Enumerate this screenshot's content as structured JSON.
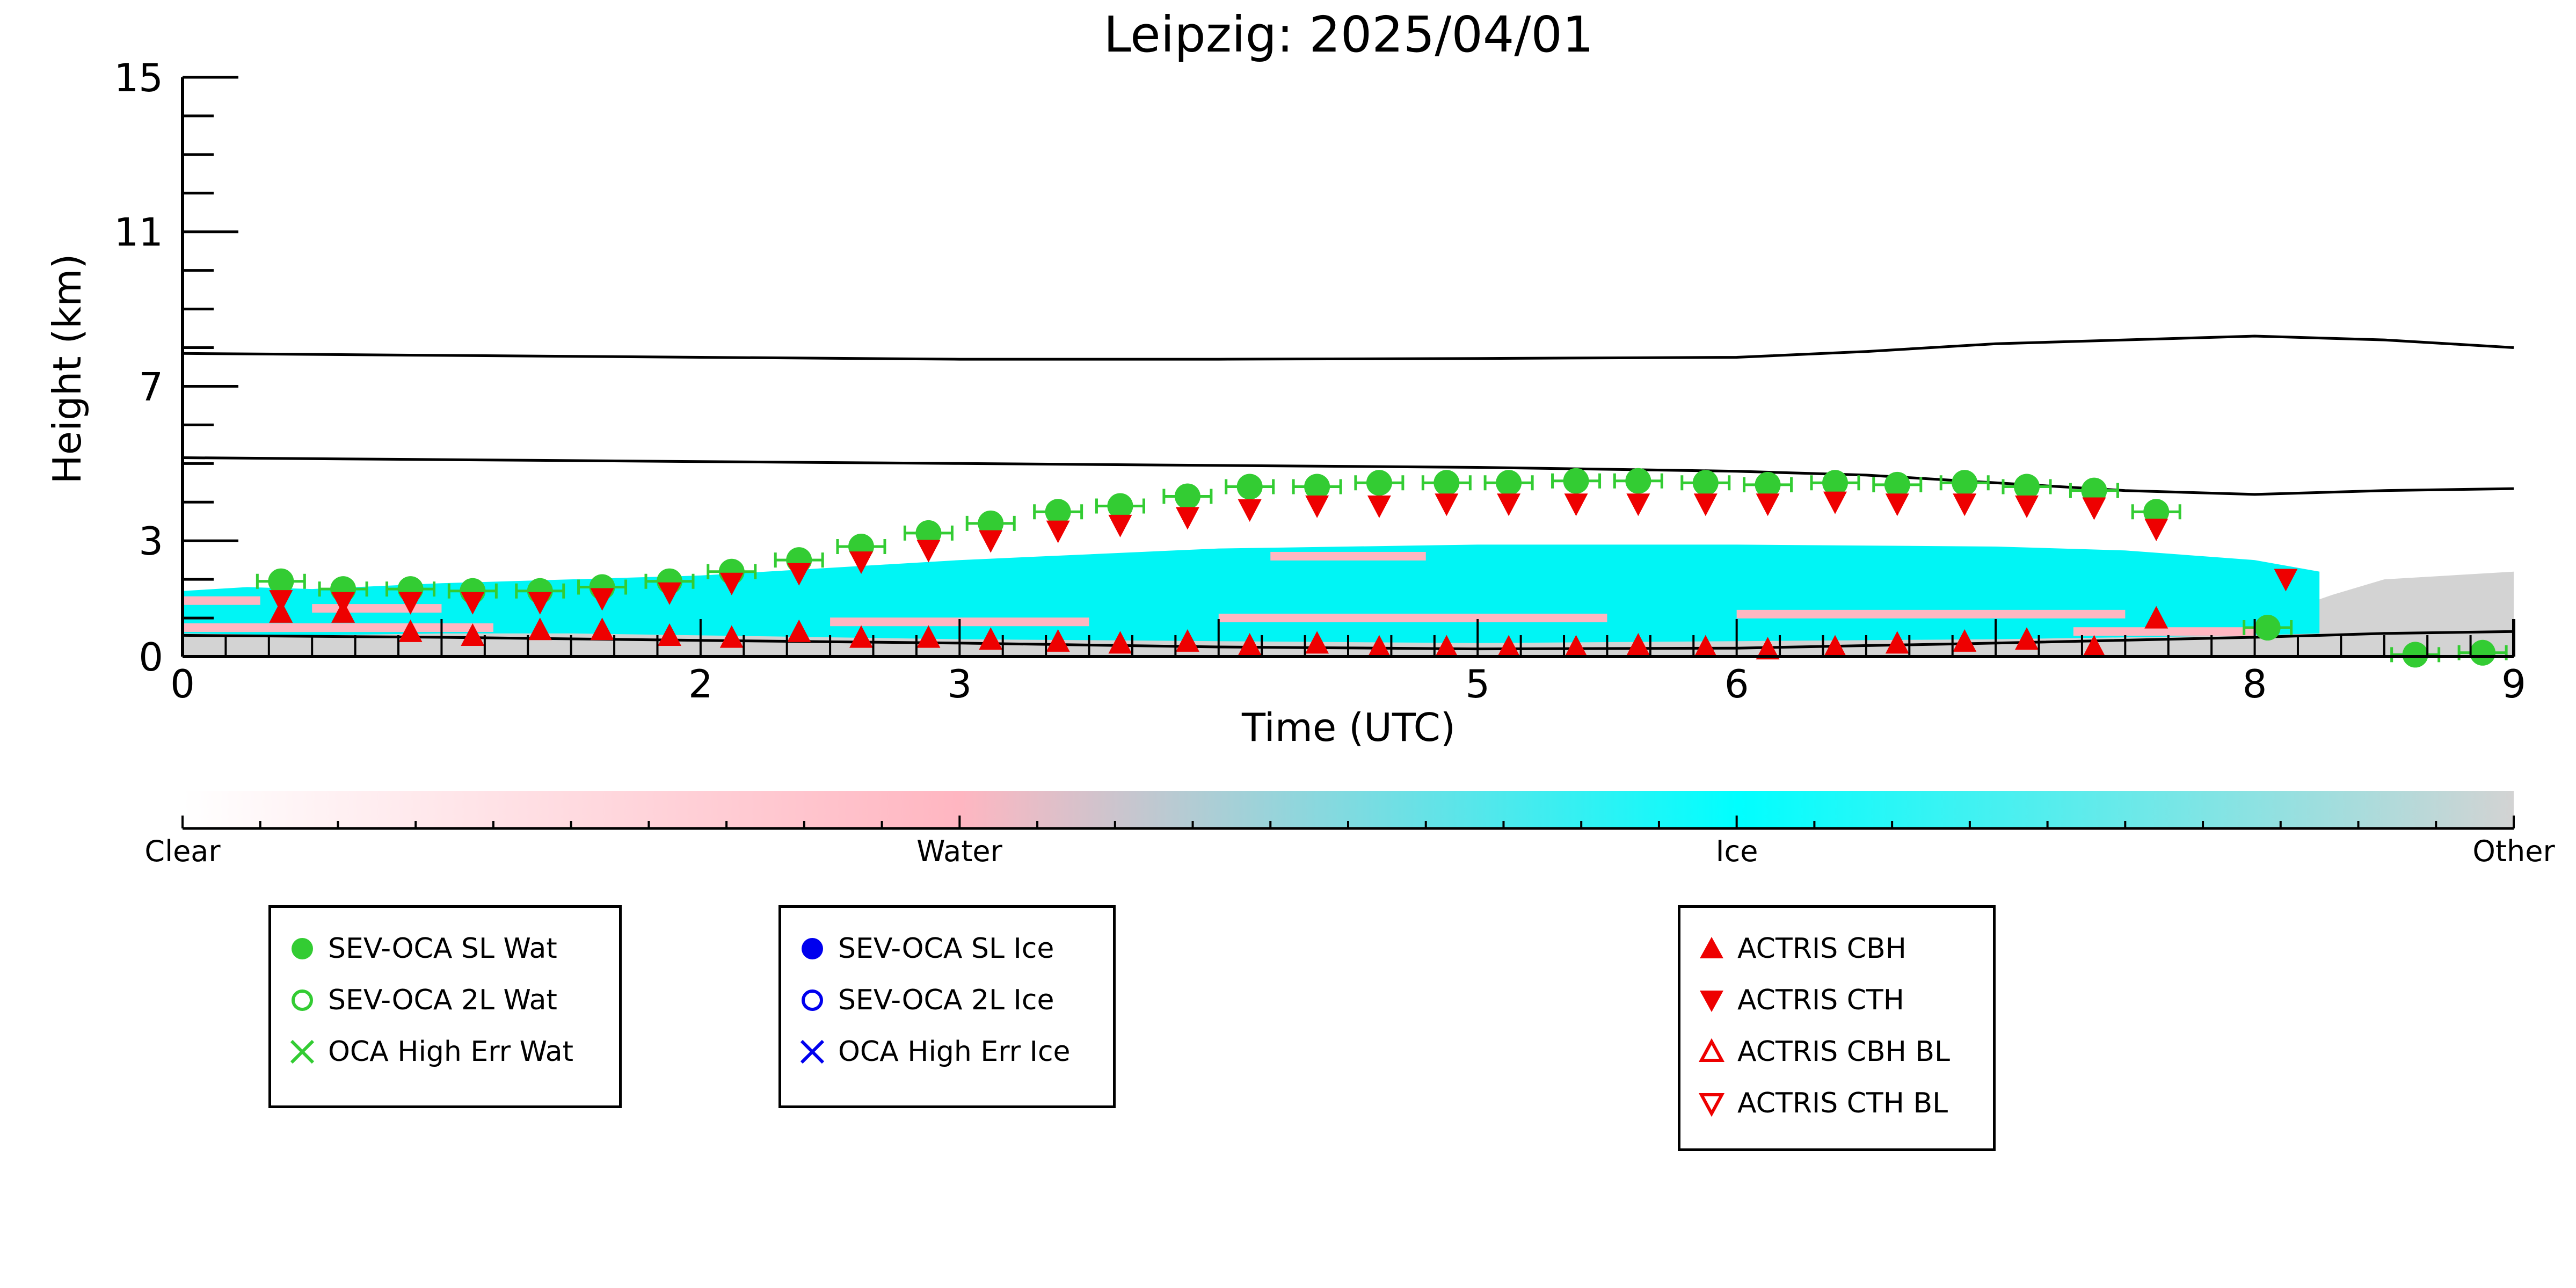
{
  "chart_data": {
    "type": "scatter",
    "title": "Leipzig: 2025/04/01",
    "xlabel": "Time (UTC)",
    "ylabel": "Height (km)",
    "xlim": [
      0,
      9
    ],
    "ylim": [
      0,
      15
    ],
    "x_ticks": [
      0,
      2,
      3,
      5,
      6,
      8,
      9
    ],
    "y_ticks": [
      0,
      3,
      7,
      11,
      15
    ],
    "colorbar": {
      "labels": [
        "Clear",
        "Water",
        "Ice",
        "Other"
      ],
      "colors": [
        "#ffffff",
        "#ffb6c1",
        "#00ffff",
        "#d3d3d3"
      ]
    },
    "colors": {
      "water": "#33cc33",
      "ice": "#0000ee",
      "actris": "#ee0000",
      "cloud_ice": "#00f5f5",
      "cloud_water": "#ffb6c1",
      "cloud_other": "#d3d3d3"
    },
    "lines": [
      {
        "x": [
          0,
          1,
          2,
          3,
          4,
          5,
          6,
          6.5,
          7,
          7.5,
          8,
          8.5,
          9
        ],
        "y": [
          7.85,
          7.8,
          7.75,
          7.7,
          7.7,
          7.72,
          7.75,
          7.9,
          8.1,
          8.2,
          8.3,
          8.2,
          8.0
        ]
      },
      {
        "x": [
          0,
          1,
          2,
          3,
          4,
          5,
          6,
          6.5,
          7,
          7.5,
          8,
          8.5,
          9
        ],
        "y": [
          5.15,
          5.1,
          5.05,
          5.0,
          4.95,
          4.9,
          4.8,
          4.7,
          4.5,
          4.3,
          4.2,
          4.3,
          4.35
        ]
      },
      {
        "x": [
          0,
          1,
          2,
          3,
          4,
          5,
          6,
          7,
          8,
          8.5,
          9
        ],
        "y": [
          0.55,
          0.5,
          0.42,
          0.35,
          0.25,
          0.2,
          0.22,
          0.35,
          0.5,
          0.6,
          0.65
        ]
      }
    ],
    "regions": [
      {
        "type": "ice",
        "x": [
          0,
          0.25,
          0.5,
          1,
          1.5,
          2,
          2.5,
          3,
          4,
          5,
          6,
          7,
          7.5,
          7.8,
          8.0,
          8.25,
          8.25,
          8.0,
          7.5,
          7,
          6,
          5,
          4,
          3,
          2.5,
          2,
          1.5,
          1,
          0.5,
          0
        ],
        "y": [
          1.7,
          1.8,
          1.75,
          1.9,
          2.0,
          2.1,
          2.3,
          2.5,
          2.8,
          2.9,
          2.9,
          2.85,
          2.75,
          2.6,
          2.5,
          2.2,
          0.6,
          0.55,
          0.5,
          0.45,
          0.4,
          0.35,
          0.4,
          0.45,
          0.5,
          0.55,
          0.6,
          0.6,
          0.55,
          0.6
        ]
      },
      {
        "type": "other",
        "x": [
          0,
          9,
          9,
          8.5,
          8.3,
          8.0,
          7.5,
          7,
          6,
          5,
          4,
          3,
          2,
          1,
          0
        ],
        "y": [
          0,
          0,
          2.2,
          2.0,
          1.6,
          0.9,
          0.8,
          0.7,
          0.6,
          0.55,
          0.55,
          0.55,
          0.6,
          0.65,
          0.7
        ]
      }
    ],
    "series": [
      {
        "name": "SEV-OCA SL Wat",
        "marker": "filled-circle",
        "x": [
          0.38,
          0.62,
          0.88,
          1.12,
          1.38,
          1.62,
          1.88,
          2.12,
          2.38,
          2.62,
          2.88,
          3.12,
          3.38,
          3.62,
          3.88,
          4.12,
          4.38,
          4.62,
          4.88,
          5.12,
          5.38,
          5.62,
          5.88,
          6.12,
          6.38,
          6.62,
          6.88,
          7.12,
          7.38,
          7.62,
          8.05,
          8.62,
          8.88
        ],
        "y": [
          1.95,
          1.75,
          1.75,
          1.7,
          1.7,
          1.8,
          1.95,
          2.2,
          2.5,
          2.85,
          3.2,
          3.45,
          3.75,
          3.9,
          4.15,
          4.4,
          4.4,
          4.5,
          4.5,
          4.5,
          4.55,
          4.55,
          4.5,
          4.45,
          4.5,
          4.45,
          4.5,
          4.4,
          4.3,
          3.75,
          0.75,
          0.05,
          0.1
        ]
      },
      {
        "name": "SEV-OCA 2L Wat",
        "marker": "open-circle",
        "x": [],
        "y": []
      },
      {
        "name": "OCA High Err Wat",
        "marker": "x",
        "x": [],
        "y": []
      },
      {
        "name": "SEV-OCA SL Ice",
        "marker": "filled-circle",
        "x": [],
        "y": []
      },
      {
        "name": "SEV-OCA 2L Ice",
        "marker": "open-circle",
        "x": [],
        "y": []
      },
      {
        "name": "OCA High Err Ice",
        "marker": "x",
        "x": [],
        "y": []
      },
      {
        "name": "ACTRIS CBH",
        "marker": "triangle-up",
        "x": [
          0.38,
          0.62,
          0.88,
          1.12,
          1.38,
          1.62,
          1.88,
          2.12,
          2.38,
          2.62,
          2.88,
          3.12,
          3.38,
          3.62,
          3.88,
          4.12,
          4.38,
          4.62,
          4.88,
          5.12,
          5.38,
          5.62,
          5.88,
          6.12,
          6.38,
          6.62,
          6.88,
          7.12,
          7.38,
          7.62
        ],
        "y": [
          1.1,
          1.1,
          0.6,
          0.5,
          0.65,
          0.65,
          0.5,
          0.45,
          0.6,
          0.45,
          0.45,
          0.4,
          0.35,
          0.3,
          0.35,
          0.25,
          0.3,
          0.2,
          0.2,
          0.2,
          0.2,
          0.25,
          0.2,
          0.15,
          0.2,
          0.3,
          0.35,
          0.4,
          0.2,
          0.95
        ]
      },
      {
        "name": "ACTRIS CTH",
        "marker": "triangle-down",
        "x": [
          0.38,
          0.62,
          0.88,
          1.12,
          1.38,
          1.62,
          1.88,
          2.12,
          2.38,
          2.62,
          2.88,
          3.12,
          3.38,
          3.62,
          3.88,
          4.12,
          4.38,
          4.62,
          4.88,
          5.12,
          5.38,
          5.62,
          5.88,
          6.12,
          6.38,
          6.62,
          6.88,
          7.12,
          7.38,
          7.62,
          8.12
        ],
        "y": [
          1.5,
          1.45,
          1.45,
          1.45,
          1.45,
          1.55,
          1.7,
          1.95,
          2.2,
          2.5,
          2.8,
          3.05,
          3.3,
          3.45,
          3.65,
          3.85,
          3.95,
          3.95,
          4.0,
          4.0,
          4.0,
          4.0,
          4.0,
          4.0,
          4.05,
          4.0,
          4.0,
          3.95,
          3.9,
          3.35,
          2.05
        ]
      },
      {
        "name": "ACTRIS CBH BL",
        "marker": "open-triangle-up",
        "x": [],
        "y": []
      },
      {
        "name": "ACTRIS CTH BL",
        "marker": "open-triangle-down",
        "x": [],
        "y": []
      }
    ]
  },
  "legends": [
    {
      "items": [
        {
          "label": "SEV-OCA SL Wat",
          "icon": "filled-circle-icon",
          "color": "#33cc33"
        },
        {
          "label": "SEV-OCA 2L Wat",
          "icon": "open-circle-icon",
          "color": "#33cc33"
        },
        {
          "label": "OCA High Err Wat",
          "icon": "x-icon",
          "color": "#33cc33"
        }
      ]
    },
    {
      "items": [
        {
          "label": "SEV-OCA SL Ice",
          "icon": "filled-circle-icon",
          "color": "#0000ee"
        },
        {
          "label": "SEV-OCA 2L Ice",
          "icon": "open-circle-icon",
          "color": "#0000ee"
        },
        {
          "label": "OCA High Err Ice",
          "icon": "x-icon",
          "color": "#0000ee"
        }
      ]
    },
    {
      "items": [
        {
          "label": "ACTRIS CBH",
          "icon": "filled-triangle-up-icon",
          "color": "#ee0000"
        },
        {
          "label": "ACTRIS CTH",
          "icon": "filled-triangle-down-icon",
          "color": "#ee0000"
        },
        {
          "label": "ACTRIS CBH BL",
          "icon": "open-triangle-up-icon",
          "color": "#ee0000"
        },
        {
          "label": "ACTRIS CTH BL",
          "icon": "open-triangle-down-icon",
          "color": "#ee0000"
        }
      ]
    }
  ]
}
